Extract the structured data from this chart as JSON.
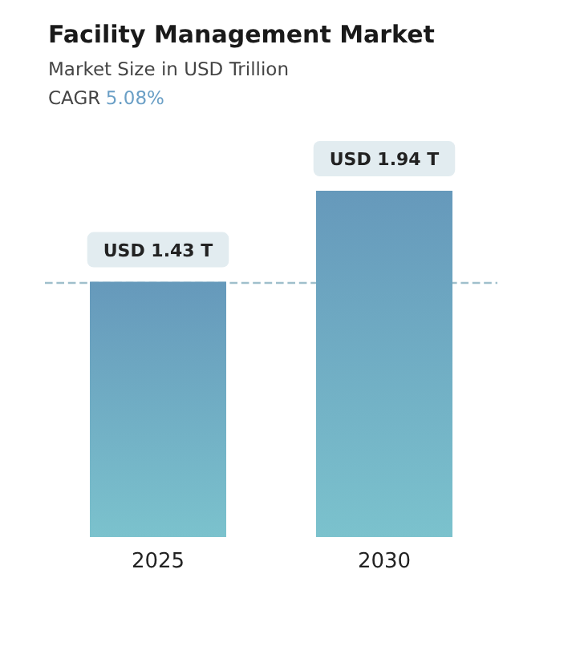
{
  "chart_data": {
    "type": "bar",
    "title": "Facility Management Market",
    "subtitle": "Market Size in USD Trillion",
    "annotations": [
      "CAGR 5.08%"
    ],
    "categories": [
      "2025",
      "2030"
    ],
    "values": [
      1.43,
      1.94
    ],
    "value_labels": [
      "USD 1.43 T",
      "USD 1.94 T"
    ],
    "color": "#6699bb",
    "ref_lines": [
      {
        "axis": "y",
        "value": 1.43,
        "color": "#9fbfcc",
        "line_style": "dashed"
      }
    ]
  }
}
